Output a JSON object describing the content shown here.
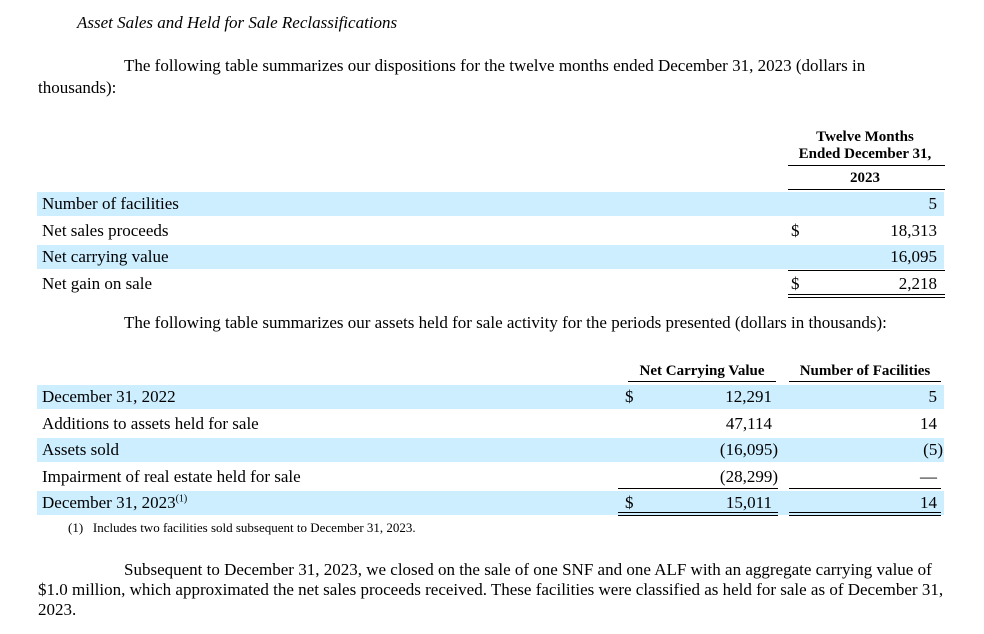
{
  "title": "Asset Sales and Held for Sale Reclassifications",
  "para1": "The following table summarizes our dispositions for the twelve months ended December 31, 2023 (dollars in thousands):",
  "table1": {
    "header_line1": "Twelve Months",
    "header_line2": "Ended December 31,",
    "header_year": "2023",
    "rows": [
      {
        "label": "Number of facilities",
        "currency": "",
        "value": "5"
      },
      {
        "label": "Net sales proceeds",
        "currency": "$",
        "value": "18,313"
      },
      {
        "label": "Net carrying value",
        "currency": "",
        "value": "16,095"
      },
      {
        "label": "Net gain on sale",
        "currency": "$",
        "value": "2,218"
      }
    ]
  },
  "para2": "The following table summarizes our assets held for sale activity for the periods presented (dollars in thousands):",
  "table2": {
    "col1_header": "Net Carrying Value",
    "col2_header": "Number of Facilities",
    "rows": [
      {
        "label": "December 31, 2022",
        "sup": "",
        "currency": "$",
        "value": "12,291",
        "count": "5"
      },
      {
        "label": "Additions to assets held for sale",
        "sup": "",
        "currency": "",
        "value": "47,114",
        "count": "14"
      },
      {
        "label": "Assets sold",
        "sup": "",
        "currency": "",
        "value": "(16,095)",
        "count": "(5)"
      },
      {
        "label": "Impairment of real estate held for sale",
        "sup": "",
        "currency": "",
        "value": "(28,299)",
        "count": "—"
      },
      {
        "label": "December 31, 2023",
        "sup": "(1)",
        "currency": "$",
        "value": "15,011",
        "count": "14"
      }
    ]
  },
  "footnote": "(1)   Includes two facilities sold subsequent to December 31, 2023.",
  "para3": "Subsequent to December 31, 2023, we closed on the sale of one SNF and one ALF with an aggregate carrying value of $1.0 million, which approximated the net sales proceeds received. These facilities were classified as held for sale as of December 31, 2023."
}
